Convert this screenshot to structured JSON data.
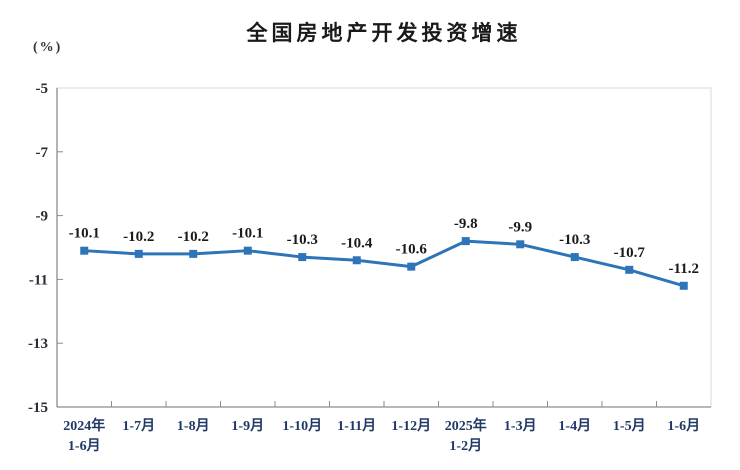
{
  "chart": {
    "title": "全国房地产开发投资增速",
    "unit_label": "(%)"
  },
  "chart_data": {
    "type": "line",
    "title": "全国房地产开发投资增速",
    "ylabel": "(%)",
    "xlabel": "",
    "categories": [
      [
        "2024年",
        "1-6月"
      ],
      [
        "1-7月"
      ],
      [
        "1-8月"
      ],
      [
        "1-9月"
      ],
      [
        "1-10月"
      ],
      [
        "1-11月"
      ],
      [
        "1-12月"
      ],
      [
        "2025年",
        "1-2月"
      ],
      [
        "1-3月"
      ],
      [
        "1-4月"
      ],
      [
        "1-5月"
      ],
      [
        "1-6月"
      ]
    ],
    "series": [
      {
        "name": "全国房地产开发投资增速",
        "values": [
          -10.1,
          -10.2,
          -10.2,
          -10.1,
          -10.3,
          -10.4,
          -10.6,
          -9.8,
          -9.9,
          -10.3,
          -10.7,
          -11.2
        ]
      }
    ],
    "data_labels": [
      "-10.1",
      "-10.2",
      "-10.2",
      "-10.1",
      "-10.3",
      "-10.4",
      "-10.6",
      "-9.8",
      "-9.9",
      "-10.3",
      "-10.7",
      "-11.2"
    ],
    "ylim": [
      -15,
      -5
    ],
    "yticks": [
      -5,
      -7,
      -9,
      -11,
      -13,
      -15
    ],
    "grid": false,
    "legend": "none",
    "marker": "square",
    "colors": {
      "line": "#2e74b8",
      "marker": "#2e74b8",
      "data_label": "#1a1a1a",
      "axis_tick_label_y": "#2b2b33",
      "axis_tick_label_x": "#1f3864",
      "axis_line": "#8c8c8c",
      "plot_border": "#d9d9d9",
      "title": "#1a1a1a"
    }
  }
}
